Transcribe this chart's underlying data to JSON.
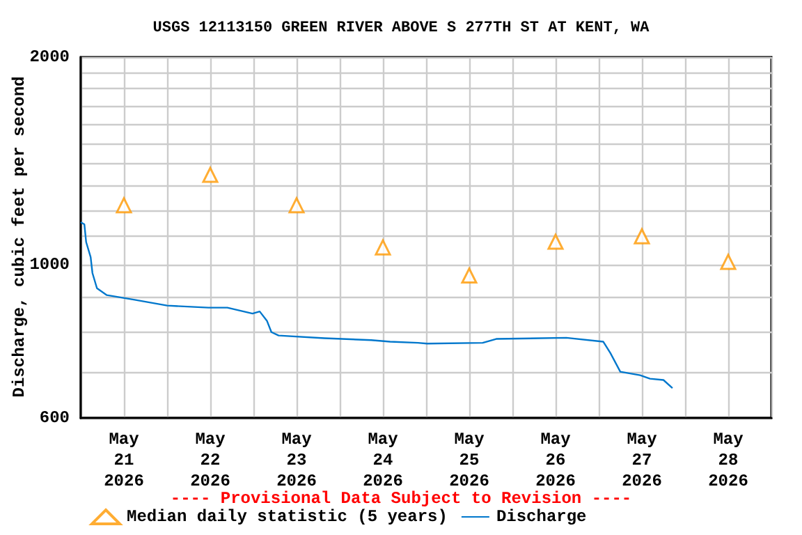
{
  "chart_data": {
    "type": "line",
    "title": "USGS 12113150 GREEN RIVER ABOVE S 277TH ST AT KENT, WA",
    "ylabel": "Discharge, cubic feet per second",
    "log": "y",
    "grid": true,
    "legend": "bottom",
    "annotations": [
      "---- Provisional Data Subject to Revision ----"
    ],
    "xlim": [
      "2026-05-21T00:00",
      "2026-05-29T00:00"
    ],
    "xticks": [
      {
        "value": "2026-05-21T00:00",
        "label": null
      },
      {
        "value": "2026-05-21T12:00",
        "label": "May\n21\n2026"
      },
      {
        "value": "2026-05-22T00:00",
        "label": null
      },
      {
        "value": "2026-05-22T12:00",
        "label": "May\n22\n2026"
      },
      {
        "value": "2026-05-23T00:00",
        "label": null
      },
      {
        "value": "2026-05-23T12:00",
        "label": "May\n23\n2026"
      },
      {
        "value": "2026-05-24T00:00",
        "label": null
      },
      {
        "value": "2026-05-24T12:00",
        "label": "May\n24\n2026"
      },
      {
        "value": "2026-05-25T00:00",
        "label": null
      },
      {
        "value": "2026-05-25T12:00",
        "label": "May\n25\n2026"
      },
      {
        "value": "2026-05-26T00:00",
        "label": null
      },
      {
        "value": "2026-05-26T12:00",
        "label": "May\n26\n2026"
      },
      {
        "value": "2026-05-27T00:00",
        "label": null
      },
      {
        "value": "2026-05-27T12:00",
        "label": "May\n27\n2026"
      },
      {
        "value": "2026-05-28T00:00",
        "label": null
      },
      {
        "value": "2026-05-28T12:00",
        "label": "May\n28\n2026"
      },
      {
        "value": "2026-05-29T00:00",
        "label": null
      }
    ],
    "ylim": [
      600,
      2000
    ],
    "yticks": [
      600,
      {
        "value": 700,
        "label": null
      },
      {
        "value": 800,
        "label": null
      },
      {
        "value": 900,
        "label": null
      },
      1000,
      {
        "value": 1100,
        "label": null
      },
      {
        "value": 1200,
        "label": null
      },
      {
        "value": 1300,
        "label": null
      },
      {
        "value": 1400,
        "label": null
      },
      {
        "value": 1500,
        "label": null
      },
      {
        "value": 1600,
        "label": null
      },
      {
        "value": 1700,
        "label": null
      },
      {
        "value": 1800,
        "label": null
      },
      {
        "value": 1900,
        "label": null
      },
      2000
    ],
    "series": [
      {
        "name": "Median daily statistic (5 years)",
        "type": "scatter",
        "marker": "triangle",
        "color": "#ff9900",
        "x": [
          "2026-05-21T12:00",
          "2026-05-22T12:00",
          "2026-05-23T12:00",
          "2026-05-24T12:00",
          "2026-05-25T12:00",
          "2026-05-26T12:00",
          "2026-05-27T12:00",
          "2026-05-28T12:00"
        ],
        "values": [
          1220,
          1350,
          1220,
          1060,
          965,
          1080,
          1100,
          1010
        ]
      },
      {
        "name": "Discharge",
        "type": "line",
        "color": "#0077cc",
        "x": [
          "2026-05-21T00:00",
          "2026-05-21T01:00",
          "2026-05-21T01:30",
          "2026-05-21T02:45",
          "2026-05-21T03:15",
          "2026-05-21T04:30",
          "2026-05-21T07:15",
          "2026-05-21T15:00",
          "2026-05-22T00:00",
          "2026-05-22T11:30",
          "2026-05-22T16:45",
          "2026-05-22T23:45",
          "2026-05-23T01:45",
          "2026-05-23T03:45",
          "2026-05-23T05:00",
          "2026-05-23T07:00",
          "2026-05-23T19:45",
          "2026-05-24T08:45",
          "2026-05-24T14:00",
          "2026-05-24T21:45",
          "2026-05-25T00:15",
          "2026-05-25T15:45",
          "2026-05-25T19:30",
          "2026-05-26T15:00",
          "2026-05-27T01:15",
          "2026-05-27T03:15",
          "2026-05-27T06:00",
          "2026-05-27T11:30",
          "2026-05-27T14:15",
          "2026-05-27T18:00",
          "2026-05-27T20:30"
        ],
        "values": [
          1153,
          1145,
          1079,
          1026,
          973,
          925,
          904,
          890,
          873,
          867,
          867,
          850,
          856,
          830,
          799,
          790,
          783,
          778,
          774,
          771,
          769,
          771,
          781,
          784,
          774,
          745,
          700,
          692,
          684,
          681,
          663
        ]
      }
    ]
  }
}
